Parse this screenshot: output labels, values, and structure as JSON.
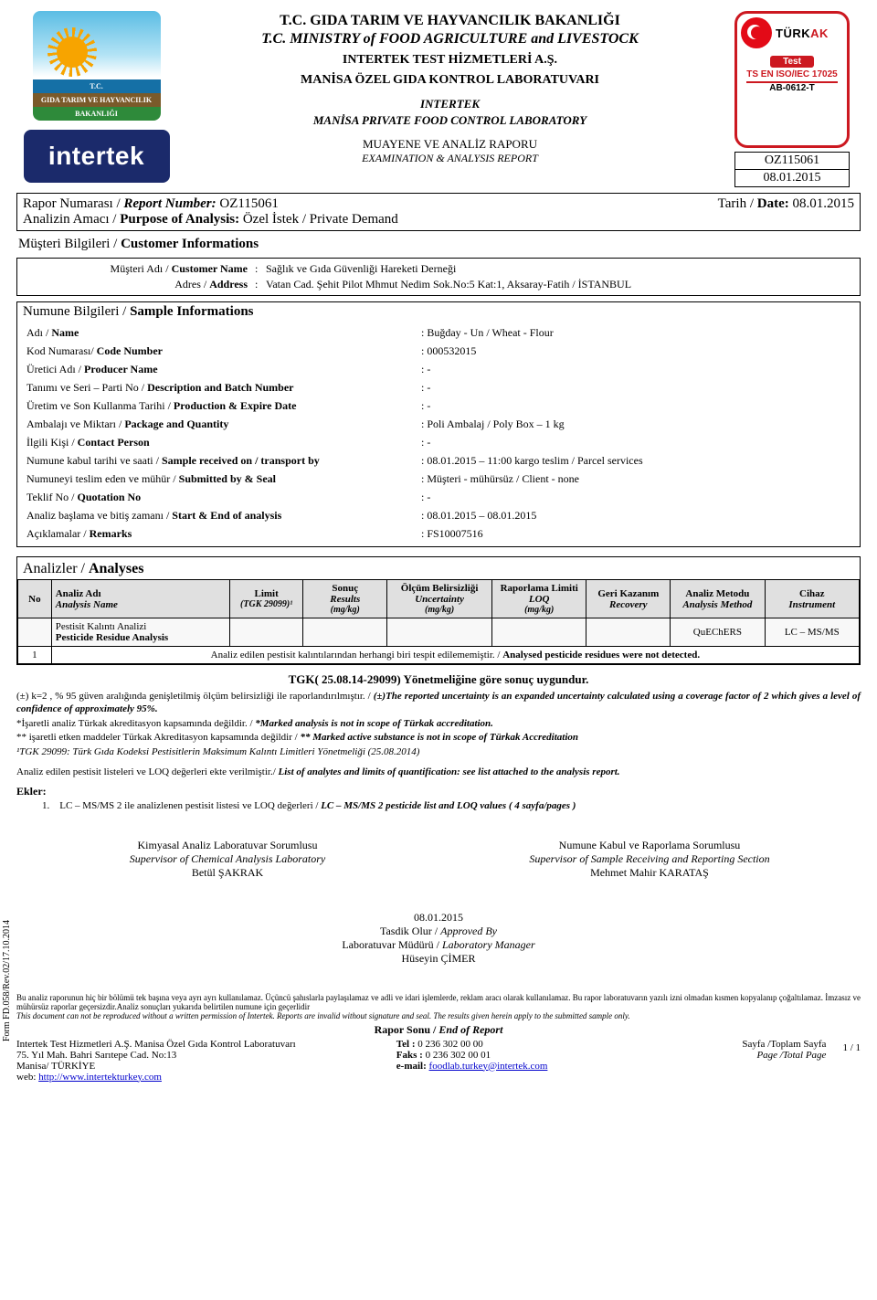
{
  "header": {
    "ministry_tr": "T.C. GIDA TARIM VE HAYVANCILIK BAKANLIĞI",
    "ministry_en": "T.C. MINISTRY of FOOD AGRICULTURE and LIVESTOCK",
    "company_tr": "INTERTEK TEST HİZMETLERİ A.Ş.",
    "lab_tr": "MANİSA ÖZEL GIDA KONTROL LABORATUVARI",
    "company_en": "INTERTEK",
    "lab_en": "MANİSA PRIVATE FOOD CONTROL LABORATORY",
    "report_tr": "MUAYENE VE ANALİZ RAPORU",
    "report_en": "EXAMINATION & ANALYSIS REPORT",
    "ministry_logo_line1": "T.C.",
    "ministry_logo_line2": "GIDA TARIM VE HAYVANCILIK",
    "ministry_logo_line3": "BAKANLIĞI",
    "intertek_logo_text": "intertek"
  },
  "turkak": {
    "brand_turk": "TÜRK",
    "brand_ak": "AK",
    "test": "Test",
    "iso": "TS EN ISO/IEC 17025",
    "code": "AB-0612-T"
  },
  "refbox": {
    "number": "OZ115061",
    "date": "08.01.2015"
  },
  "report_info": {
    "number_label": "Rapor Numarası / Report Number:",
    "number": "OZ115061",
    "date_label": "Tarih / Date:",
    "date": "08.01.2015",
    "purpose_label": "Analizin Amacı / Purpose of Analysis:",
    "purpose": "Özel İstek / Private Demand"
  },
  "customer": {
    "section_title_tr": "Müşteri Bilgileri /",
    "section_title_en": "Customer Informations",
    "name_label_tr": "Müşteri Adı /",
    "name_label_en": "Customer Name",
    "name": "Sağlık ve Gıda Güvenliği Hareketi Derneği",
    "address_label_tr": "Adres /",
    "address_label_en": "Address",
    "address": "Vatan Cad. Şehit Pilot Mhmut Nedim Sok.No:5 Kat:1, Aksaray-Fatih / İSTANBUL"
  },
  "sample": {
    "section_title_tr": "Numune Bilgileri /",
    "section_title_en": "Sample Informations",
    "rows": [
      {
        "k_tr": "Adı /",
        "k_en": "Name",
        "v": "Buğday - Un / Wheat - Flour"
      },
      {
        "k_tr": "Kod Numarası/",
        "k_en": "Code Number",
        "v": "000532015"
      },
      {
        "k_tr": "Üretici Adı /",
        "k_en": "Producer Name",
        "v": "-"
      },
      {
        "k_tr": "Tanımı ve Seri – Parti No /",
        "k_en": "Description and Batch Number",
        "v": "-"
      },
      {
        "k_tr": "Üretim ve Son Kullanma Tarihi  /",
        "k_en": "Production & Expire Date",
        "v": "-"
      },
      {
        "k_tr": "Ambalajı ve Miktarı /",
        "k_en": "Package and Quantity",
        "v": "Poli Ambalaj / Poly Box – 1 kg"
      },
      {
        "k_tr": "İlgili Kişi /",
        "k_en": "Contact Person",
        "v": "-"
      },
      {
        "k_tr": "Numune kabul tarihi ve saati /",
        "k_en": "Sample received  on / transport by",
        "v": "08.01.2015 – 11:00 kargo teslim / Parcel services"
      },
      {
        "k_tr": "Numuneyi teslim eden ve mühür /",
        "k_en": "Submitted by & Seal",
        "v": "Müşteri - mühürsüz  / Client - none"
      },
      {
        "k_tr": "Teklif No /",
        "k_en": "Quotation No",
        "v": "-"
      },
      {
        "k_tr": "Analiz başlama ve bitiş zamanı  /",
        "k_en": "Start & End of analysis",
        "v": "08.01.2015 – 08.01.2015"
      },
      {
        "k_tr": "Açıklamalar  /",
        "k_en": "Remarks",
        "v": "FS10007516"
      }
    ]
  },
  "analyses": {
    "title_tr": "Analizler /",
    "title_en": "Analyses",
    "columns": {
      "no": "No",
      "name_tr": "Analiz Adı",
      "name_en": "Analysis Name",
      "limit_tr": "Limit",
      "limit_sub": "(TGK 29099)¹",
      "result_tr": "Sonuç",
      "result_en": "Results",
      "result_unit": "(mg/kg)",
      "uncert_tr": "Ölçüm Belirsizliği",
      "uncert_en": "Uncertainty",
      "uncert_unit": "(mg/kg)",
      "loq_tr": "Raporlama Limiti",
      "loq_en": "LOQ",
      "loq_unit": "(mg/kg)",
      "recov_tr": "Geri Kazanım",
      "recov_en": "Recovery",
      "method_tr": "Analiz Metodu",
      "method_en": "Analysis Method",
      "instr_tr": "Cihaz",
      "instr_en": "Instrument"
    },
    "category_tr": "Pestisit Kalıntı Analizi",
    "category_en": "Pesticide Residue Analysis",
    "method": "QuEChERS",
    "instrument": "LC – MS/MS",
    "row_no": "1",
    "row_text_tr": "Analiz edilen pestisit kalıntılarından herhangi biri tespit edilememiştir. /",
    "row_text_en": "Analysed pesticide residues were not detected."
  },
  "compliance": "TGK( 25.08.14-29099)  Yönetmeliğine göre sonuç uygundur.",
  "notes": {
    "n1_tr": "(±) k=2 , % 95 güven aralığında genişletilmiş ölçüm belirsizliği ile raporlandırılmıştır. /",
    "n1_en": "(±)The reported uncertainty is an expanded uncertainty calculated using a coverage factor of 2 which gives a level of confidence of approximately 95%.",
    "n2_tr": "*İşaretli analiz Türkak akreditasyon kapsamında değildir.  /",
    "n2_en": "*Marked analysis is not in scope of Türkak accreditation.",
    "n3_tr": "** işaretli etken maddeler Türkak Akreditasyon kapsamında değildir /",
    "n3_en": "** Marked active substance is not in scope of Türkak Accreditation",
    "n4": "¹TGK 29099: Türk Gıda Kodeksi Pestisitlerin Maksimum Kalıntı Limitleri Yönetmeliği (25.08.2014)",
    "n5_tr": "Analiz edilen pestisit listeleri ve LOQ değerleri ekte verilmiştir./",
    "n5_en": "List of analytes and limits of quantification: see list attached to the analysis report."
  },
  "ekler": {
    "title": "Ekler:",
    "item1_no": "1.",
    "item1_tr": "LC – MS/MS 2 ile analizlenen pestisit listesi ve LOQ değerleri /",
    "item1_en": "LC – MS/MS 2 pesticide list and LOQ values ( 4 sayfa/pages )"
  },
  "signatures": {
    "left_title_tr": "Kimyasal Analiz Laboratuvar Sorumlusu",
    "left_title_en": "Supervisor of Chemical Analysis Laboratory",
    "left_name": "Betül ŞAKRAK",
    "right_title_tr": "Numune Kabul ve Raporlama Sorumlusu",
    "right_title_en": "Supervisor of Sample Receiving and Reporting Section",
    "right_name": "Mehmet Mahir KARATAŞ",
    "approve_date": "08.01.2015",
    "approve_tr": "Tasdik Olur /",
    "approve_en": "Approved By",
    "manager_tr": "Laboratuvar Müdürü /",
    "manager_en": "Laboratory Manager",
    "manager_name": "Hüseyin ÇİMER"
  },
  "form_ref": "Form FD.058/Rev.02/17.10.2014",
  "footer": {
    "disclaimer_tr": "Bu analiz raporunun hiç bir bölümü tek başına veya ayrı ayrı kullanılamaz. Üçüncü şahıslarla paylaşılamaz ve adli ve idari işlemlerde, reklam aracı olarak kullanılamaz. Bu rapor laboratuvarın yazılı izni olmadan kısmen kopyalanıp çoğaltılamaz. İmzasız ve mühürsüz raporlar geçersizdir.Analiz sonuçları yukarıda belirtilen numune için geçerlidir",
    "disclaimer_en": "This document can not  be reproduced  without a written permission of Intertek. Reports are invalid without signature and seal. The results given herein apply to the submitted sample only.",
    "end_tr": "Rapor Sonu /",
    "end_en": "End of Report",
    "addr1": "Intertek Test Hizmetleri A.Ş. Manisa Özel Gıda Kontrol Laboratuvarı",
    "addr2": "75. Yıl Mah. Bahri Sarıtepe Cad. No:13",
    "addr3": "Manisa/ TÜRKİYE",
    "web_label": "web:",
    "web": "http://www.intertekturkey.com",
    "tel_label": "Tel :",
    "tel": "0 236 302 00 00",
    "fax_label": "Faks :",
    "fax": "0 236 302 00 01",
    "email_label": "e-mail:",
    "email": "foodlab.turkey@intertek.com",
    "page_tr": "Sayfa /Toplam Sayfa",
    "page_en": "Page /Total Page",
    "page_no": "1 / 1"
  }
}
